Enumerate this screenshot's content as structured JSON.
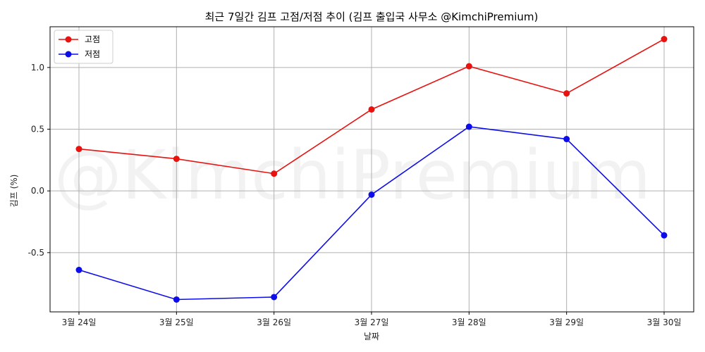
{
  "chart_data": {
    "type": "line",
    "title": "최근 7일간 김프 고점/저점 추이 (김프 출입국 사무소 @KimchiPremium)",
    "xlabel": "날짜",
    "ylabel": "김프 (%)",
    "categories": [
      "3월 24일",
      "3월 25일",
      "3월 26일",
      "3월 27일",
      "3월 28일",
      "3월 29일",
      "3월 30일"
    ],
    "series": [
      {
        "name": "고점",
        "color": "#e8120f",
        "values": [
          0.34,
          0.26,
          0.14,
          0.66,
          1.01,
          0.79,
          1.23
        ]
      },
      {
        "name": "저점",
        "color": "#0d0dea",
        "values": [
          -0.64,
          -0.88,
          -0.86,
          -0.03,
          0.52,
          0.42,
          -0.36
        ]
      }
    ],
    "ylim": [
      -0.98,
      1.33
    ],
    "yticks": [
      -0.5,
      0.0,
      0.5,
      1.0
    ],
    "ytick_labels": [
      "-0.5",
      "0.0",
      "0.5",
      "1.0"
    ],
    "grid": true,
    "legend_position": "top-left",
    "watermark": "@KimchiPremium"
  }
}
